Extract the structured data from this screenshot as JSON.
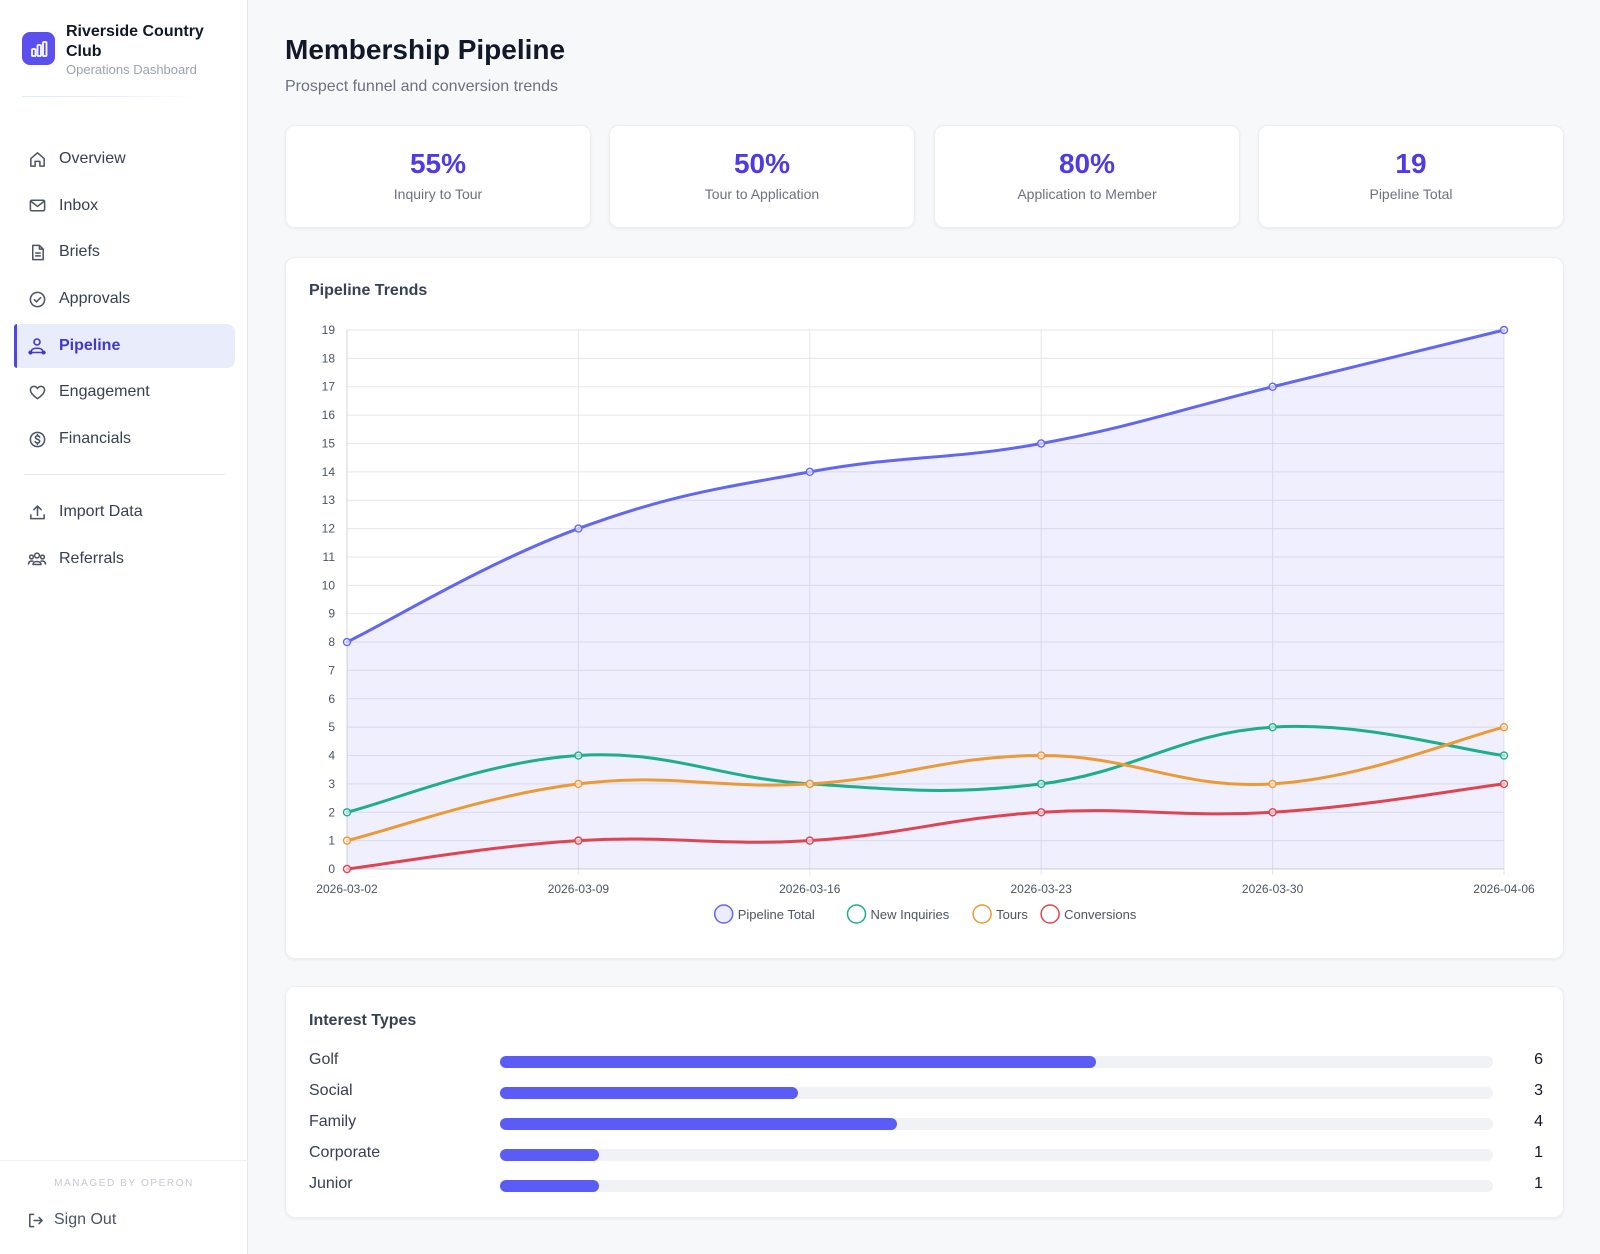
{
  "brand": {
    "name": "Riverside Country Club",
    "subtitle": "Operations Dashboard"
  },
  "nav": {
    "items": [
      {
        "label": "Overview",
        "icon": "home-icon"
      },
      {
        "label": "Inbox",
        "icon": "mail-icon"
      },
      {
        "label": "Briefs",
        "icon": "document-icon"
      },
      {
        "label": "Approvals",
        "icon": "check-circle-icon"
      },
      {
        "label": "Pipeline",
        "icon": "user-pipeline-icon",
        "active": true
      },
      {
        "label": "Engagement",
        "icon": "heart-icon"
      },
      {
        "label": "Financials",
        "icon": "dollar-circle-icon"
      }
    ],
    "secondary": [
      {
        "label": "Import Data",
        "icon": "upload-icon"
      },
      {
        "label": "Referrals",
        "icon": "users-icon"
      }
    ],
    "managed_by": "MANAGED BY OPERON",
    "sign_out": "Sign Out"
  },
  "header": {
    "title": "Membership Pipeline",
    "subtitle": "Prospect funnel and conversion trends"
  },
  "kpis": [
    {
      "value": "55%",
      "label": "Inquiry to Tour"
    },
    {
      "value": "50%",
      "label": "Tour to Application"
    },
    {
      "value": "80%",
      "label": "Application to Member"
    },
    {
      "value": "19",
      "label": "Pipeline Total"
    }
  ],
  "chart_data": {
    "type": "line",
    "title": "Pipeline Trends",
    "x": [
      "2026-03-02",
      "2026-03-09",
      "2026-03-16",
      "2026-03-23",
      "2026-03-30",
      "2026-04-06"
    ],
    "ylim": [
      0,
      19
    ],
    "grid": true,
    "legend": "bottom",
    "series": [
      {
        "name": "Pipeline Total",
        "values": [
          8,
          12,
          14,
          15,
          17,
          19
        ],
        "color": "#6366f1",
        "fill": true
      },
      {
        "name": "New Inquiries",
        "values": [
          2,
          4,
          3,
          3,
          5,
          4
        ],
        "color": "#1fae8a"
      },
      {
        "name": "Tours",
        "values": [
          1,
          3,
          3,
          4,
          3,
          5
        ],
        "color": "#eb9a35"
      },
      {
        "name": "Conversions",
        "values": [
          0,
          1,
          1,
          2,
          2,
          3
        ],
        "color": "#e04452"
      }
    ]
  },
  "interest": {
    "title": "Interest Types",
    "max": 10,
    "items": [
      {
        "label": "Golf",
        "value": 6
      },
      {
        "label": "Social",
        "value": 3
      },
      {
        "label": "Family",
        "value": 4
      },
      {
        "label": "Corporate",
        "value": 1
      },
      {
        "label": "Junior",
        "value": 1
      }
    ]
  },
  "colors": {
    "accent": "#4f46e5",
    "kpi_value": "#4f3ae6",
    "bar": "#5b5cf6"
  }
}
